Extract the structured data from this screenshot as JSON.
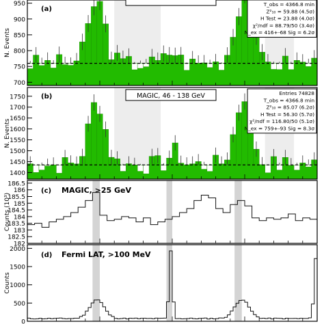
{
  "chart_data": [
    {
      "type": "bar",
      "panel": "(a)",
      "title": "",
      "ylabel": "N. Events",
      "ylim": [
        690,
        960
      ],
      "yticks": [
        700,
        750,
        800,
        850,
        900,
        950
      ],
      "bins": 50,
      "background_level": 760,
      "shaded_regions": [
        [
          0.3,
          0.46
        ],
        [
          0.82,
          0.92
        ]
      ],
      "peaks": [
        [
          0.24,
          0.028,
          200
        ],
        [
          0.5,
          0.02,
          40
        ],
        [
          0.74,
          0.028,
          160
        ],
        [
          0.76,
          0.02,
          80
        ]
      ],
      "noise_amp": 30,
      "seed": 3,
      "stats": {
        "entries": "",
        "lines": [
          "T_obs = 4366.8 min",
          "Z²₁₀ = 59.88  (4.5σ)",
          "H Test = 23.88  (4.0σ)",
          "χ²/ndf = 88.79/50  (3.4σ)",
          "N_ex = 416+-68    Sig = 6.2σ"
        ]
      },
      "fill_color": "#22bb00",
      "bg_line_color": "#000000"
    },
    {
      "type": "bar",
      "panel": "(b)",
      "title": "MAGIC, 46 - 138 GeV",
      "ylabel": "N. Events",
      "ylim": [
        1370,
        1790
      ],
      "yticks": [
        1400,
        1450,
        1500,
        1550,
        1600,
        1650,
        1700,
        1750
      ],
      "bins": 50,
      "background_level": 1435,
      "shaded_regions": [
        [
          0.3,
          0.46
        ],
        [
          0.82,
          0.92
        ]
      ],
      "peaks": [
        [
          0.24,
          0.028,
          290
        ],
        [
          0.51,
          0.02,
          60
        ],
        [
          0.74,
          0.028,
          230
        ],
        [
          0.76,
          0.02,
          120
        ]
      ],
      "noise_amp": 45,
      "seed": 7,
      "stats": {
        "entries": "Entries  74828",
        "lines": [
          "T_obs = 4366.8 min",
          "Z²₁₀ = 85.07  (6.2σ)",
          "H Test = 56.30  (5.7σ)",
          "χ²/ndf = 116.80/50  (5.1σ)",
          "N_ex = 759+-93    Sig = 8.3σ"
        ]
      },
      "fill_color": "#22bb00",
      "bg_line_color": "#000000"
    },
    {
      "type": "line",
      "panel": "(c)",
      "title": "MAGIC, >25 GeV",
      "ylabel": "Counts (10³)",
      "ylim": [
        182.0,
        186.7
      ],
      "yticks": [
        182,
        182.5,
        183,
        183.5,
        184,
        184.5,
        185,
        185.5,
        186,
        186.5
      ],
      "bins": 40,
      "values": [
        183.4,
        183.5,
        183.2,
        183.6,
        183.8,
        184.0,
        184.3,
        184.7,
        185.2,
        185.8,
        184.1,
        183.7,
        183.8,
        184.0,
        183.9,
        183.6,
        183.9,
        183.4,
        183.6,
        183.8,
        184.0,
        184.3,
        184.6,
        185.2,
        185.6,
        185.4,
        184.6,
        184.3,
        184.9,
        185.2,
        184.8,
        183.9,
        183.7,
        183.9,
        183.8,
        183.9,
        184.2,
        183.7,
        183.9,
        183.8
      ],
      "shaded_regions": [
        [
          0.225,
          0.25
        ],
        [
          0.48,
          0.5
        ],
        [
          0.715,
          0.74
        ]
      ]
    },
    {
      "type": "line",
      "panel": "(d)",
      "title": "Fermi LAT, >100 MeV",
      "ylabel": "Counts",
      "ylim": [
        0,
        2100
      ],
      "yticks": [
        0,
        500,
        1000,
        1500,
        2000
      ],
      "bins": 100,
      "shaded_regions": [
        [
          0.225,
          0.25
        ],
        [
          0.48,
          0.5
        ],
        [
          0.715,
          0.74
        ]
      ],
      "peaks": [
        [
          0.24,
          0.025,
          520
        ],
        [
          0.495,
          0.006,
          1850
        ],
        [
          0.74,
          0.025,
          520
        ],
        [
          0.995,
          0.006,
          1650
        ]
      ],
      "base": 75,
      "noise_amp": 15,
      "seed": 11
    }
  ]
}
